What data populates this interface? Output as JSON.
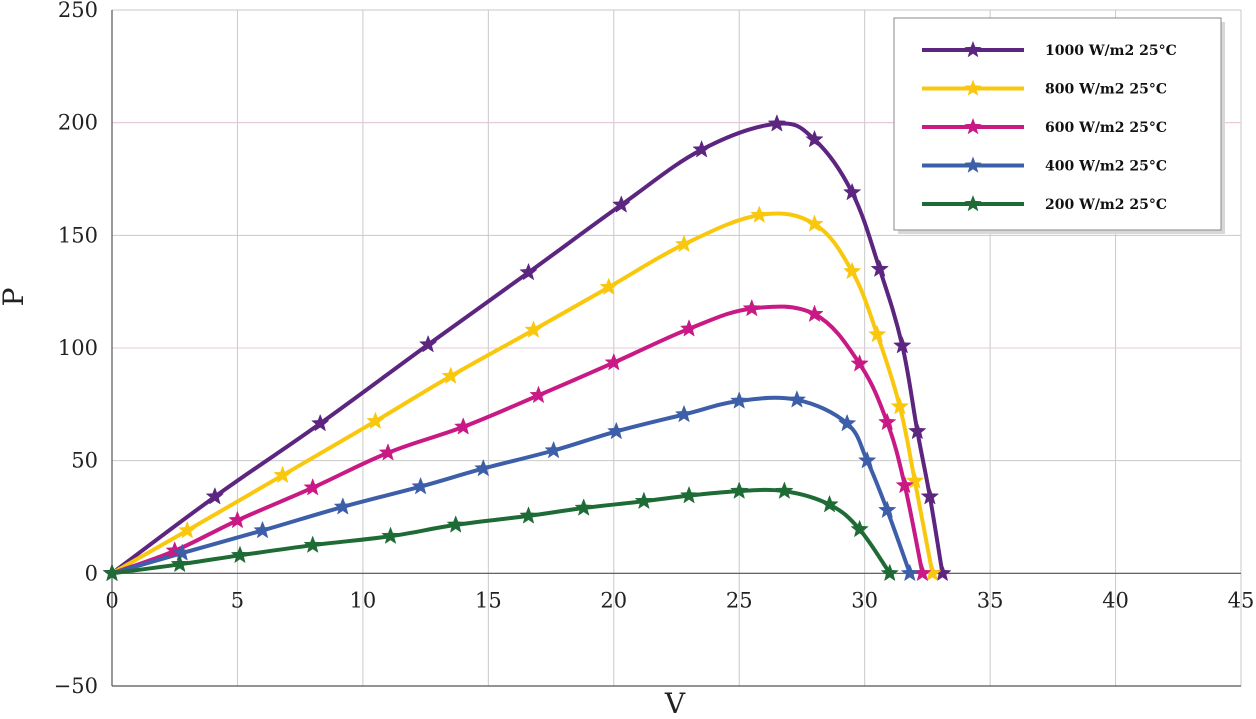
{
  "chart_data": {
    "type": "line",
    "title": "",
    "xlabel": "V",
    "ylabel": "P",
    "xlim": [
      0,
      45
    ],
    "ylim": [
      -50,
      250
    ],
    "x_ticks": [
      0,
      5,
      10,
      15,
      20,
      25,
      30,
      35,
      40,
      45
    ],
    "y_ticks": [
      -50,
      0,
      50,
      100,
      150,
      200,
      250
    ],
    "x_tick_labels": [
      "0",
      "5",
      "10",
      "15",
      "20",
      "25",
      "30",
      "35",
      "40",
      "45"
    ],
    "y_tick_labels": [
      "−50",
      "0",
      "50",
      "100",
      "150",
      "200",
      "250"
    ],
    "grid": true,
    "legend_position": "top-right",
    "marker": "star",
    "series": [
      {
        "name": "1000 W/m2 25°C",
        "color": "#5c2580",
        "points": [
          [
            0,
            0
          ],
          [
            4.1,
            34
          ],
          [
            8.3,
            66.5
          ],
          [
            12.6,
            101.5
          ],
          [
            16.6,
            133.5
          ],
          [
            20.3,
            163.5
          ],
          [
            23.5,
            188
          ],
          [
            26.5,
            199.5
          ],
          [
            28,
            192.5
          ],
          [
            29.5,
            169
          ],
          [
            30.6,
            135
          ],
          [
            31.5,
            101
          ],
          [
            32.1,
            63
          ],
          [
            32.6,
            34
          ],
          [
            33.1,
            0
          ]
        ]
      },
      {
        "name": "800 W/m2 25°C",
        "color": "#f9c80e",
        "points": [
          [
            0,
            0
          ],
          [
            3,
            19
          ],
          [
            6.8,
            43.5
          ],
          [
            10.5,
            67.5
          ],
          [
            13.5,
            87.5
          ],
          [
            16.8,
            108
          ],
          [
            19.8,
            127
          ],
          [
            22.8,
            146
          ],
          [
            25.8,
            159
          ],
          [
            28,
            155
          ],
          [
            29.5,
            134
          ],
          [
            30.5,
            106
          ],
          [
            31.4,
            74
          ],
          [
            32,
            41
          ],
          [
            32.7,
            0
          ]
        ]
      },
      {
        "name": "600 W/m2 25°C",
        "color": "#c81985",
        "points": [
          [
            0,
            0
          ],
          [
            2.5,
            10
          ],
          [
            5,
            23.5
          ],
          [
            8,
            38
          ],
          [
            11,
            53.5
          ],
          [
            14,
            65
          ],
          [
            17,
            79
          ],
          [
            20,
            93.5
          ],
          [
            23,
            108.5
          ],
          [
            25.5,
            117.5
          ],
          [
            28,
            115
          ],
          [
            29.8,
            93
          ],
          [
            30.9,
            67
          ],
          [
            31.6,
            39
          ],
          [
            32.3,
            0
          ]
        ]
      },
      {
        "name": "400 W/m2 25°C",
        "color": "#3d5ea8",
        "points": [
          [
            0,
            0
          ],
          [
            2.8,
            9
          ],
          [
            6,
            19
          ],
          [
            9.2,
            29.5
          ],
          [
            12.3,
            38.5
          ],
          [
            14.8,
            46.5
          ],
          [
            17.6,
            54.5
          ],
          [
            20.1,
            63
          ],
          [
            22.8,
            70.5
          ],
          [
            25,
            76.5
          ],
          [
            27.3,
            77
          ],
          [
            29.3,
            66.5
          ],
          [
            30.1,
            50
          ],
          [
            30.9,
            28
          ],
          [
            31.8,
            0
          ]
        ]
      },
      {
        "name": "200 W/m2 25°C",
        "color": "#1e6b35",
        "points": [
          [
            0,
            0
          ],
          [
            2.7,
            4
          ],
          [
            5.1,
            8
          ],
          [
            8,
            12.5
          ],
          [
            11.1,
            16.5
          ],
          [
            13.7,
            21.5
          ],
          [
            16.6,
            25.5
          ],
          [
            18.8,
            29
          ],
          [
            21.2,
            32
          ],
          [
            23,
            34.5
          ],
          [
            25,
            36.5
          ],
          [
            26.8,
            36.5
          ],
          [
            28.6,
            30.5
          ],
          [
            29.8,
            19.5
          ],
          [
            31,
            0
          ]
        ]
      }
    ]
  }
}
